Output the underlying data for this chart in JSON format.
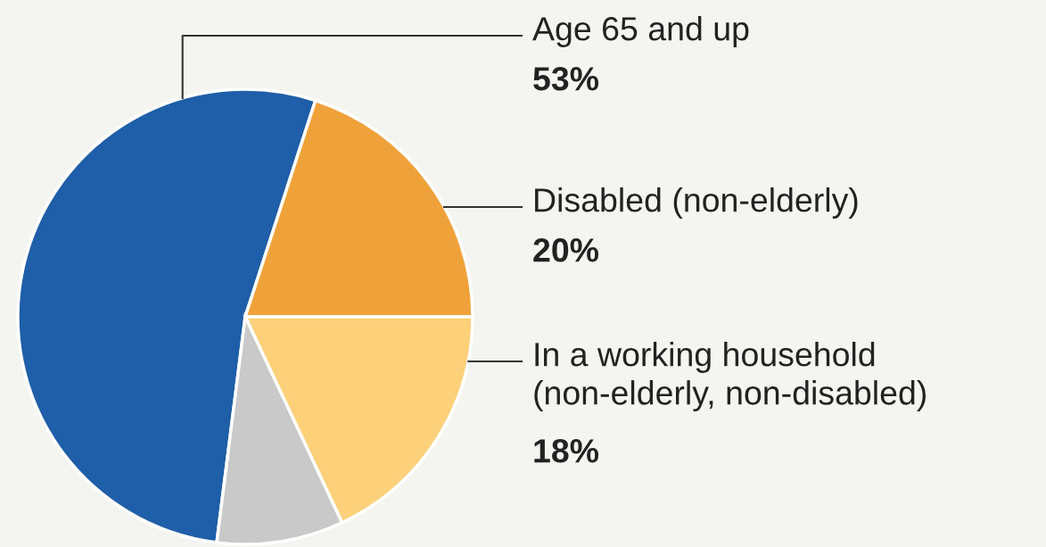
{
  "chart_data": {
    "type": "pie",
    "categories": [
      "Age 65 and up",
      "Disabled (non-elderly)",
      "In a working household\n(non-elderly, non-disabled)",
      null
    ],
    "values": [
      53,
      20,
      18,
      9
    ],
    "value_labels": [
      "53%",
      "20%",
      "18%",
      null
    ],
    "colors": [
      "#1f5ea8",
      "#f0a23a",
      "#fdd07a",
      "#c9c9c9"
    ]
  }
}
